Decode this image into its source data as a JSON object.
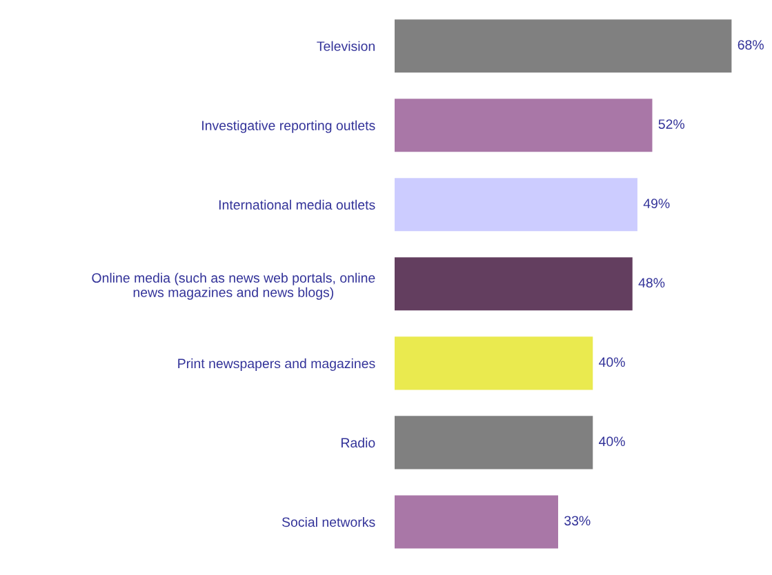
{
  "chart_data": {
    "type": "bar",
    "orientation": "horizontal",
    "categories": [
      "Television",
      "Investigative reporting outlets",
      "International media outlets",
      "Online media (such as news web portals, online\nnews magazines and news blogs)",
      "Print newspapers and magazines",
      "Radio",
      "Social networks"
    ],
    "values": [
      68,
      52,
      49,
      48,
      40,
      40,
      33
    ],
    "colors": [
      "#808080",
      "#a977a7",
      "#ccccff",
      "#633e5f",
      "#eaea4f",
      "#808080",
      "#a977a7"
    ],
    "value_labels": [
      "68%",
      "52%",
      "49%",
      "48%",
      "40%",
      "40%",
      "33%"
    ],
    "grid": false,
    "legend": false
  }
}
